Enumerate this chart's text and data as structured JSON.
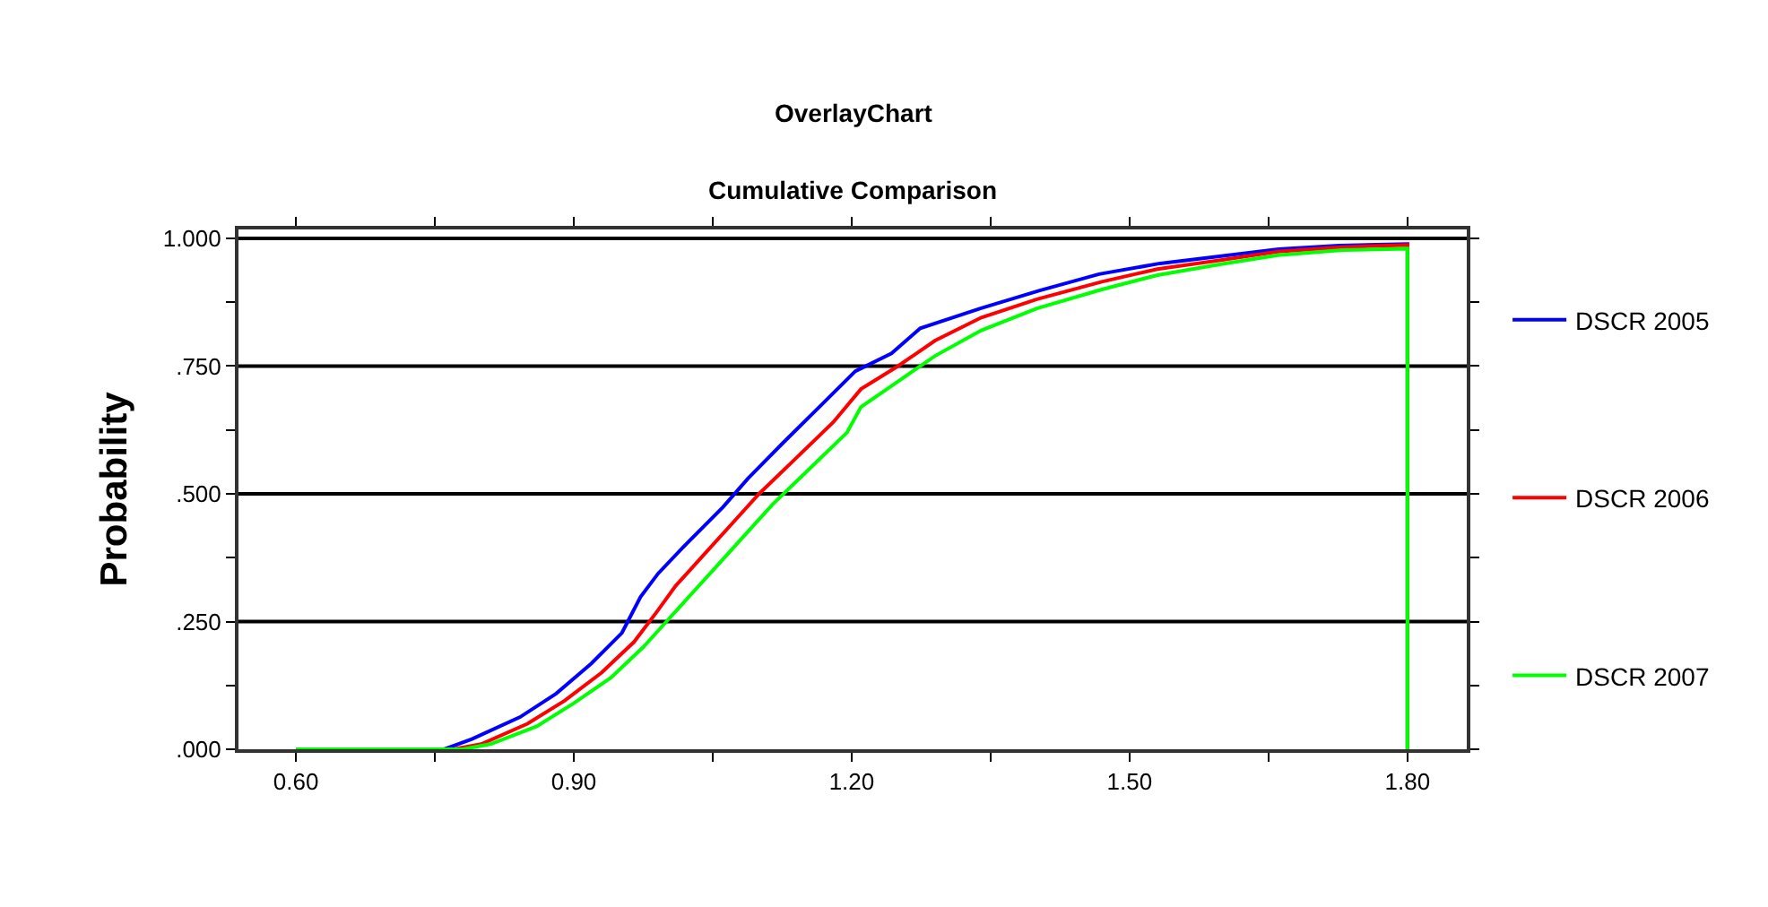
{
  "chart_data": {
    "type": "line",
    "title": "OverlayChart",
    "subtitle": "Cumulative Comparison",
    "ylabel": "Probability",
    "xlim": [
      0.538,
      1.864
    ],
    "ylim": [
      0,
      1.0175
    ],
    "xticks": [
      {
        "value": 0.6,
        "label": "0.60"
      },
      {
        "value": 0.75,
        "label": null
      },
      {
        "value": 0.9,
        "label": "0.90"
      },
      {
        "value": 1.05,
        "label": null
      },
      {
        "value": 1.2,
        "label": "1.20"
      },
      {
        "value": 1.35,
        "label": null
      },
      {
        "value": 1.5,
        "label": "1.50"
      },
      {
        "value": 1.65,
        "label": null
      },
      {
        "value": 1.8,
        "label": "1.80"
      }
    ],
    "yticks": [
      {
        "value": 0,
        "label": ".000"
      },
      {
        "value": 0.125,
        "label": null
      },
      {
        "value": 0.25,
        "label": ".250"
      },
      {
        "value": 0.375,
        "label": null
      },
      {
        "value": 0.5,
        "label": ".500"
      },
      {
        "value": 0.625,
        "label": null
      },
      {
        "value": 0.75,
        "label": ".750"
      },
      {
        "value": 0.875,
        "label": null
      },
      {
        "value": 1,
        "label": "1.000"
      }
    ],
    "grid": "y",
    "legend": "right",
    "marker": "none",
    "line_style": "solid",
    "series": [
      {
        "name": "DSCR 2005",
        "color": "#0000ff",
        "x": [
          0.6,
          0.76,
          0.79,
          0.842,
          0.881,
          0.919,
          0.952,
          0.972,
          0.991,
          1.022,
          1.061,
          1.088,
          1.126,
          1.165,
          1.204,
          1.243,
          1.274,
          1.339,
          1.403,
          1.467,
          1.533,
          1.597,
          1.661,
          1.726,
          1.8,
          1.8
        ],
        "values": [
          0,
          0,
          0.02,
          0.063,
          0.109,
          0.168,
          0.228,
          0.298,
          0.344,
          0.403,
          0.474,
          0.53,
          0.6,
          0.67,
          0.74,
          0.775,
          0.824,
          0.863,
          0.898,
          0.93,
          0.951,
          0.965,
          0.979,
          0.986,
          0.989,
          0
        ]
      },
      {
        "name": "DSCR 2006",
        "color": "#ff0000",
        "x": [
          0.6,
          0.77,
          0.8,
          0.85,
          0.89,
          0.93,
          0.965,
          0.99,
          1.01,
          1.04,
          1.075,
          1.1,
          1.14,
          1.18,
          1.21,
          1.25,
          1.29,
          1.34,
          1.4,
          1.47,
          1.53,
          1.6,
          1.66,
          1.73,
          1.8,
          1.8
        ],
        "values": [
          0,
          0,
          0.01,
          0.05,
          0.095,
          0.15,
          0.21,
          0.27,
          0.32,
          0.38,
          0.45,
          0.5,
          0.57,
          0.64,
          0.705,
          0.75,
          0.8,
          0.845,
          0.881,
          0.915,
          0.94,
          0.958,
          0.974,
          0.983,
          0.987,
          0
        ]
      },
      {
        "name": "DSCR 2007",
        "color": "#00ff00",
        "x": [
          0.6,
          0.78,
          0.81,
          0.86,
          0.9,
          0.94,
          0.975,
          1.0,
          1.025,
          1.055,
          1.09,
          1.115,
          1.155,
          1.195,
          1.21,
          1.25,
          1.29,
          1.34,
          1.4,
          1.47,
          1.53,
          1.6,
          1.66,
          1.73,
          1.8,
          1.8
        ],
        "values": [
          0,
          0,
          0.01,
          0.045,
          0.09,
          0.14,
          0.2,
          0.25,
          0.3,
          0.36,
          0.43,
          0.48,
          0.55,
          0.62,
          0.67,
          0.72,
          0.77,
          0.82,
          0.863,
          0.9,
          0.928,
          0.95,
          0.967,
          0.977,
          0.98,
          0
        ]
      }
    ]
  }
}
